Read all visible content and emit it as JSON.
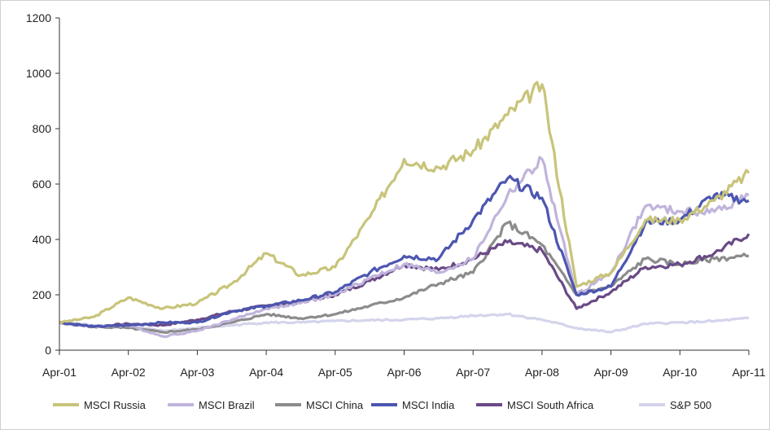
{
  "chart_data": {
    "type": "line",
    "title": "",
    "xlabel": "",
    "ylabel": "",
    "ylim": [
      0,
      1200
    ],
    "yticks": [
      0,
      200,
      400,
      600,
      800,
      1000,
      1200
    ],
    "x_tick_labels": [
      "Apr-01",
      "Apr-02",
      "Apr-03",
      "Apr-04",
      "Apr-05",
      "Apr-06",
      "Apr-07",
      "Apr-08",
      "Apr-09",
      "Apr-10",
      "Apr-11"
    ],
    "x": [
      "Apr-01",
      "Oct-01",
      "Apr-02",
      "Oct-02",
      "Apr-03",
      "Oct-03",
      "Apr-04",
      "Oct-04",
      "Apr-05",
      "Oct-05",
      "Apr-06",
      "Oct-06",
      "Apr-07",
      "Oct-07",
      "Apr-08",
      "Oct-08",
      "Apr-09",
      "Oct-09",
      "Apr-10",
      "Oct-10",
      "Apr-11"
    ],
    "grid": false,
    "legend_position": "bottom",
    "series": [
      {
        "name": "MSCI Russia",
        "color": "#c8c47a",
        "values": [
          100,
          120,
          190,
          150,
          170,
          240,
          350,
          270,
          300,
          480,
          690,
          660,
          720,
          850,
          960,
          230,
          280,
          470,
          470,
          540,
          640
        ]
      },
      {
        "name": "MSCI Brazil",
        "color": "#c0b4dc",
        "values": [
          100,
          85,
          90,
          50,
          70,
          110,
          150,
          170,
          200,
          260,
          310,
          280,
          330,
          560,
          690,
          200,
          280,
          520,
          500,
          500,
          560
        ]
      },
      {
        "name": "MSCI China",
        "color": "#8c8c8c",
        "values": [
          100,
          85,
          80,
          65,
          75,
          100,
          130,
          115,
          130,
          160,
          190,
          240,
          280,
          460,
          380,
          200,
          230,
          330,
          310,
          330,
          340
        ]
      },
      {
        "name": "MSCI India",
        "color": "#4c56b0",
        "values": [
          100,
          85,
          90,
          100,
          100,
          140,
          160,
          180,
          210,
          280,
          340,
          330,
          470,
          620,
          550,
          200,
          230,
          460,
          470,
          560,
          540
        ]
      },
      {
        "name": "MSCI South Africa",
        "color": "#6a4a86",
        "values": [
          100,
          85,
          95,
          90,
          110,
          140,
          160,
          175,
          200,
          250,
          310,
          290,
          330,
          390,
          360,
          150,
          210,
          300,
          310,
          350,
          420
        ]
      },
      {
        "name": "S&P  500",
        "color": "#d4d4ec",
        "values": [
          100,
          90,
          85,
          70,
          80,
          90,
          100,
          100,
          105,
          108,
          110,
          115,
          125,
          130,
          110,
          80,
          65,
          95,
          100,
          105,
          115
        ]
      }
    ]
  }
}
